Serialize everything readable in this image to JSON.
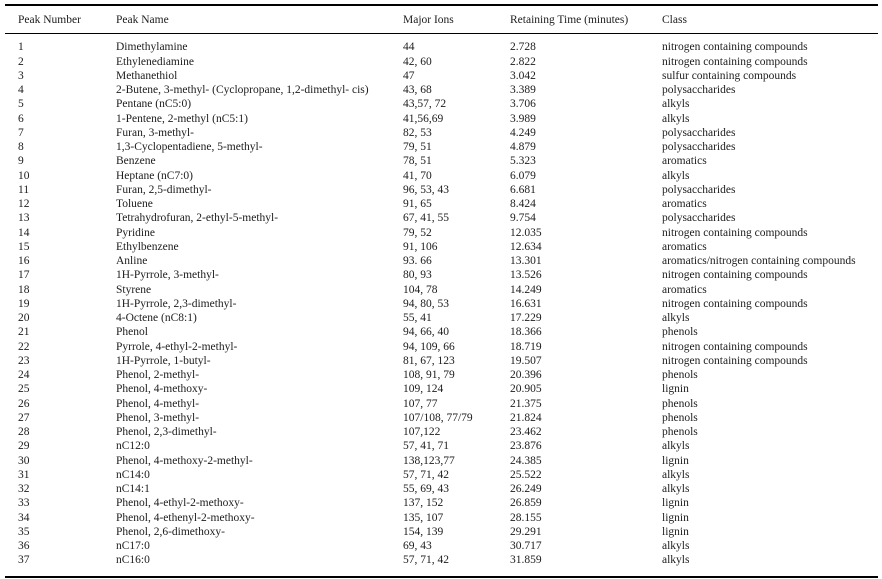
{
  "table": {
    "columns": [
      "Peak Number",
      "Peak Name",
      "Major Ions",
      "Retaining Time (minutes)",
      "Class"
    ],
    "rows": [
      [
        "1",
        "Dimethylamine",
        "44",
        "2.728",
        "nitrogen containing compounds"
      ],
      [
        "2",
        "Ethylenediamine",
        "42, 60",
        "2.822",
        "nitrogen containing compounds"
      ],
      [
        "3",
        "Methanethiol",
        "47",
        "3.042",
        "sulfur containing compounds"
      ],
      [
        "4",
        "2-Butene, 3-methyl- (Cyclopropane, 1,2-dimethyl- cis)",
        "43, 68",
        "3.389",
        "polysaccharides"
      ],
      [
        "5",
        "Pentane (nC5:0)",
        "43,57, 72",
        "3.706",
        "alkyls"
      ],
      [
        "6",
        "1-Pentene, 2-methyl (nC5:1)",
        "41,56,69",
        "3.989",
        "alkyls"
      ],
      [
        "7",
        "Furan, 3-methyl-",
        "82, 53",
        "4.249",
        "polysaccharides"
      ],
      [
        "8",
        "1,3-Cyclopentadiene, 5-methyl-",
        "79, 51",
        "4.879",
        "polysaccharides"
      ],
      [
        "9",
        "Benzene",
        "78, 51",
        "5.323",
        "aromatics"
      ],
      [
        "10",
        "Heptane (nC7:0)",
        "41, 70",
        "6.079",
        "alkyls"
      ],
      [
        "11",
        "Furan, 2,5-dimethyl-",
        "96, 53, 43",
        "6.681",
        "polysaccharides"
      ],
      [
        "12",
        "Toluene",
        "91, 65",
        "8.424",
        "aromatics"
      ],
      [
        "13",
        "Tetrahydrofuran, 2-ethyl-5-methyl-",
        "67, 41, 55",
        "9.754",
        "polysaccharides"
      ],
      [
        "14",
        "Pyridine",
        "79, 52",
        "12.035",
        "nitrogen containing compounds"
      ],
      [
        "15",
        "Ethylbenzene",
        "91, 106",
        "12.634",
        "aromatics"
      ],
      [
        "16",
        "Anline",
        "93. 66",
        "13.301",
        "aromatics/nitrogen containing compounds"
      ],
      [
        "17",
        "1H-Pyrrole, 3-methyl-",
        "80, 93",
        "13.526",
        "nitrogen containing compounds"
      ],
      [
        "18",
        "Styrene",
        "104, 78",
        "14.249",
        "aromatics"
      ],
      [
        "19",
        "1H-Pyrrole, 2,3-dimethyl-",
        "94, 80, 53",
        "16.631",
        "nitrogen containing compounds"
      ],
      [
        "20",
        "4-Octene (nC8:1)",
        "55, 41",
        "17.229",
        "alkyls"
      ],
      [
        "21",
        "Phenol",
        "94, 66, 40",
        "18.366",
        "phenols"
      ],
      [
        "22",
        "Pyrrole, 4-ethyl-2-methyl-",
        "94, 109, 66",
        "18.719",
        "nitrogen containing compounds"
      ],
      [
        "23",
        "1H-Pyrrole, 1-butyl-",
        "81, 67, 123",
        "19.507",
        "nitrogen containing compounds"
      ],
      [
        "24",
        "Phenol, 2-methyl-",
        "108, 91, 79",
        "20.396",
        "phenols"
      ],
      [
        "25",
        "Phenol, 4-methoxy-",
        "109, 124",
        "20.905",
        "lignin"
      ],
      [
        "26",
        "Phenol, 4-methyl-",
        "107, 77",
        "21.375",
        "phenols"
      ],
      [
        "27",
        "Phenol, 3-methyl-",
        "107/108, 77/79",
        "21.824",
        "phenols"
      ],
      [
        "28",
        "Phenol, 2,3-dimethyl-",
        "107,122",
        "23.462",
        "phenols"
      ],
      [
        "29",
        "nC12:0",
        "57, 41, 71",
        "23.876",
        "alkyls"
      ],
      [
        "30",
        "Phenol, 4-methoxy-2-methyl-",
        "138,123,77",
        "24.385",
        "lignin"
      ],
      [
        "31",
        "nC14:0",
        "57, 71, 42",
        "25.522",
        "alkyls"
      ],
      [
        "32",
        "nC14:1",
        "55, 69, 43",
        "26.249",
        "alkyls"
      ],
      [
        "33",
        "Phenol, 4-ethyl-2-methoxy-",
        "137, 152",
        "26.859",
        "lignin"
      ],
      [
        "34",
        "Phenol, 4-ethenyl-2-methoxy-",
        "135, 107",
        "28.155",
        "lignin"
      ],
      [
        "35",
        "Phenol, 2,6-dimethoxy-",
        "154, 139",
        "29.291",
        "lignin"
      ],
      [
        "36",
        "nC17:0",
        "69, 43",
        "30.717",
        "alkyls"
      ],
      [
        "37",
        "nC16:0",
        "57, 71, 42",
        "31.859",
        "alkyls"
      ]
    ]
  }
}
